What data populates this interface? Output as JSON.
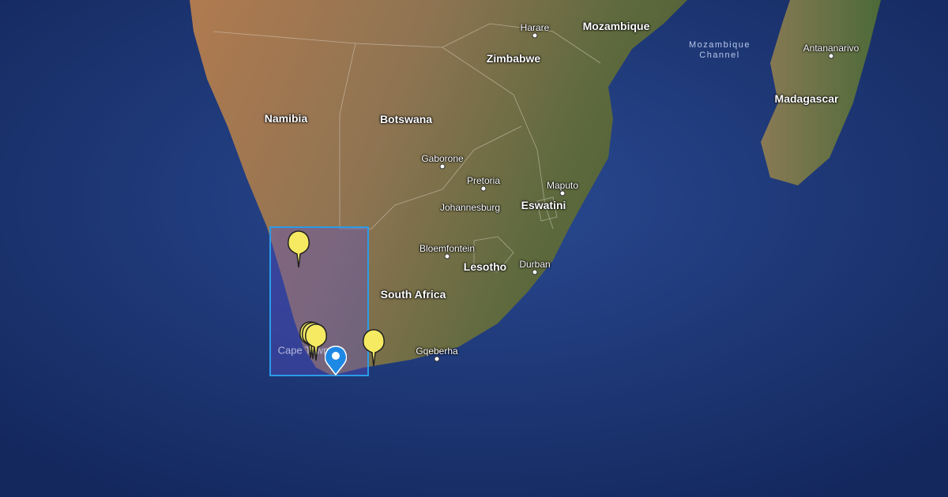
{
  "map": {
    "type": "satellite",
    "colors": {
      "ocean": "#1e3a78",
      "land": "#8a6a48",
      "selection_border": "#2b9be8",
      "selection_fill": "#5a50c8",
      "marker_yellow": "#f5ea62",
      "marker_blue": "#1e88e5"
    },
    "countries": [
      "Namibia",
      "Botswana",
      "Zimbabwe",
      "Mozambique",
      "South Africa",
      "Lesotho",
      "Eswatini",
      "Madagascar"
    ],
    "cities": [
      "Harare",
      "Gaborone",
      "Pretoria",
      "Johannesburg",
      "Maputo",
      "Bloemfontein",
      "Durban",
      "Gqeberha",
      "Antananarivo",
      "Cape Town"
    ],
    "water": {
      "line1": "Mozambique",
      "line2": "Channel"
    },
    "markers": {
      "yellow_count": 5,
      "blue_count": 1,
      "blue_icon": "location-pin-icon",
      "yellow_icon": "map-pin-icon"
    },
    "selection": "rectangle"
  }
}
